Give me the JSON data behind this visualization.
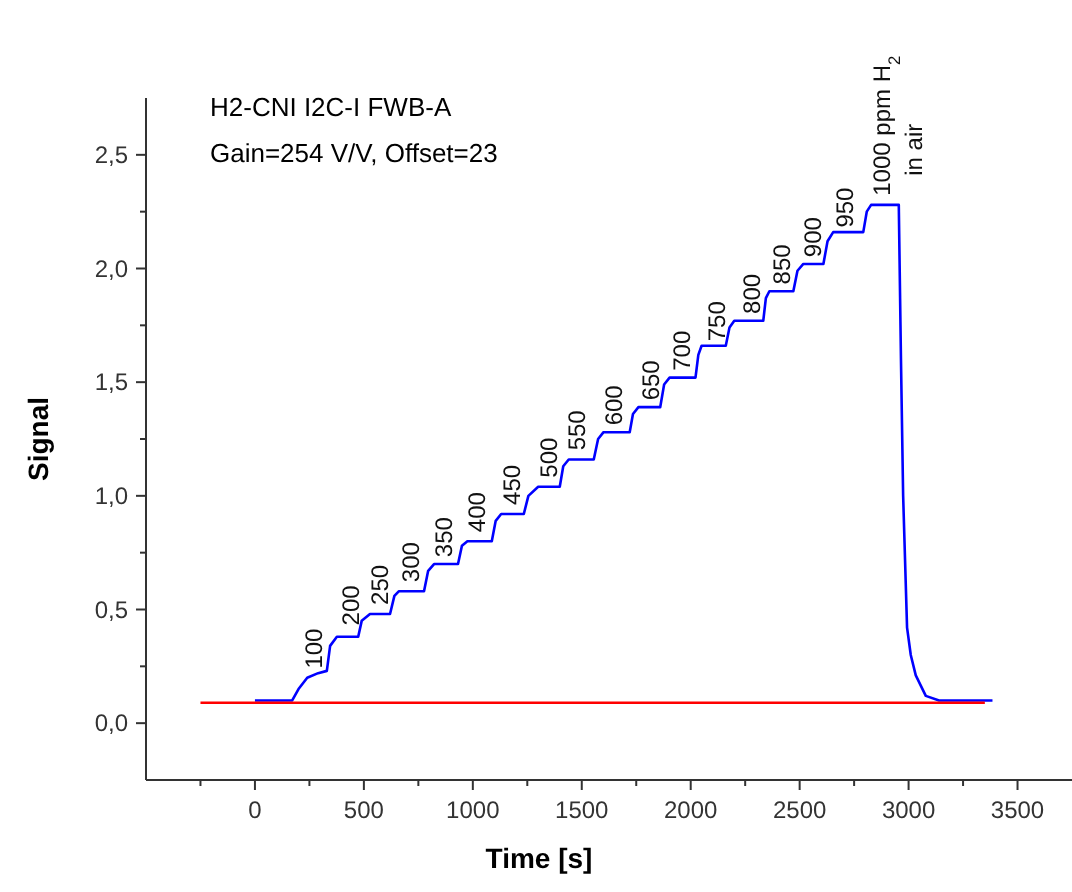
{
  "chart_data": {
    "type": "line",
    "title": "H2-CNI I2C-I FWB-A",
    "subtitle": "Gain=254 V/V, Offset=23",
    "xlabel": "Time [s]",
    "ylabel": "Signal",
    "xlim": [
      -500,
      3750
    ],
    "ylim": [
      -0.25,
      2.75
    ],
    "xticks": [
      {
        "value": -250,
        "label": null
      },
      0,
      {
        "value": 250,
        "label": null
      },
      500,
      {
        "value": 750,
        "label": null
      },
      1000,
      {
        "value": 1250,
        "label": null
      },
      1500,
      {
        "value": 1750,
        "label": null
      },
      2000,
      {
        "value": 2250,
        "label": null
      },
      2500,
      {
        "value": 2750,
        "label": null
      },
      3000,
      {
        "value": 3250,
        "label": null
      },
      3500
    ],
    "yticks": [
      {
        "value": 0,
        "label": "0,0"
      },
      {
        "value": 0.25,
        "label": null
      },
      {
        "value": 0.5,
        "label": "0,5"
      },
      {
        "value": 0.75,
        "label": null
      },
      {
        "value": 1,
        "label": "1,0"
      },
      {
        "value": 1.25,
        "label": null
      },
      {
        "value": 1.5,
        "label": "1,5"
      },
      {
        "value": 1.75,
        "label": null
      },
      {
        "value": 2,
        "label": "2,0"
      },
      {
        "value": 2.25,
        "label": null
      },
      {
        "value": 2.5,
        "label": "2,5"
      }
    ],
    "grid": false,
    "marker": "none",
    "line_style": "solid",
    "series": [
      {
        "color": "#0000ff",
        "x": [
          0,
          171,
          200,
          240,
          290,
          330,
          345,
          376,
          474,
          490,
          528,
          620,
          640,
          660,
          776,
          795,
          822,
          932,
          950,
          975,
          1087,
          1105,
          1130,
          1234,
          1255,
          1300,
          1399,
          1415,
          1440,
          1555,
          1575,
          1600,
          1720,
          1735,
          1760,
          1860,
          1878,
          1903,
          2022,
          2035,
          2050,
          2161,
          2178,
          2200,
          2333,
          2345,
          2361,
          2471,
          2490,
          2517,
          2609,
          2628,
          2654,
          2792,
          2808,
          2828,
          2945,
          2955,
          2965,
          2975,
          2993,
          3010,
          3033,
          3079,
          3140,
          3385
        ],
        "values": [
          0.1,
          0.1,
          0.15,
          0.2,
          0.22,
          0.23,
          0.34,
          0.38,
          0.38,
          0.45,
          0.48,
          0.48,
          0.56,
          0.58,
          0.58,
          0.67,
          0.7,
          0.7,
          0.78,
          0.8,
          0.8,
          0.89,
          0.92,
          0.92,
          1.0,
          1.04,
          1.04,
          1.13,
          1.16,
          1.16,
          1.25,
          1.28,
          1.28,
          1.36,
          1.39,
          1.39,
          1.49,
          1.52,
          1.52,
          1.62,
          1.66,
          1.66,
          1.74,
          1.77,
          1.77,
          1.87,
          1.9,
          1.9,
          1.99,
          2.02,
          2.02,
          2.12,
          2.16,
          2.16,
          2.25,
          2.28,
          2.28,
          2.28,
          1.6,
          1.0,
          0.42,
          0.3,
          0.21,
          0.12,
          0.1,
          0.1
        ]
      },
      {
        "color": "#ff0000",
        "x": [
          -250,
          3350
        ],
        "values": [
          0.09,
          0.09
        ]
      }
    ],
    "annotations": [
      {
        "text": "100",
        "x": 270,
        "y": 0.24
      },
      {
        "text": "200",
        "x": 440,
        "y": 0.43
      },
      {
        "text": "250",
        "x": 575,
        "y": 0.52
      },
      {
        "text": "300",
        "x": 715,
        "y": 0.62
      },
      {
        "text": "350",
        "x": 870,
        "y": 0.73
      },
      {
        "text": "400",
        "x": 1020,
        "y": 0.84
      },
      {
        "text": "450",
        "x": 1180,
        "y": 0.96
      },
      {
        "text": "500",
        "x": 1350,
        "y": 1.08
      },
      {
        "text": "550",
        "x": 1480,
        "y": 1.2
      },
      {
        "text": "600",
        "x": 1650,
        "y": 1.31
      },
      {
        "text": "650",
        "x": 1820,
        "y": 1.42
      },
      {
        "text": "700",
        "x": 1960,
        "y": 1.55
      },
      {
        "text": "750",
        "x": 2120,
        "y": 1.68
      },
      {
        "text": "800",
        "x": 2280,
        "y": 1.8
      },
      {
        "text": "850",
        "x": 2420,
        "y": 1.93
      },
      {
        "text": "900",
        "x": 2560,
        "y": 2.05
      },
      {
        "text": "950",
        "x": 2710,
        "y": 2.18
      },
      {
        "text": "1000 ppm H$_{2}$",
        "x": 2880,
        "y": 2.32
      },
      "in air"
    ]
  }
}
